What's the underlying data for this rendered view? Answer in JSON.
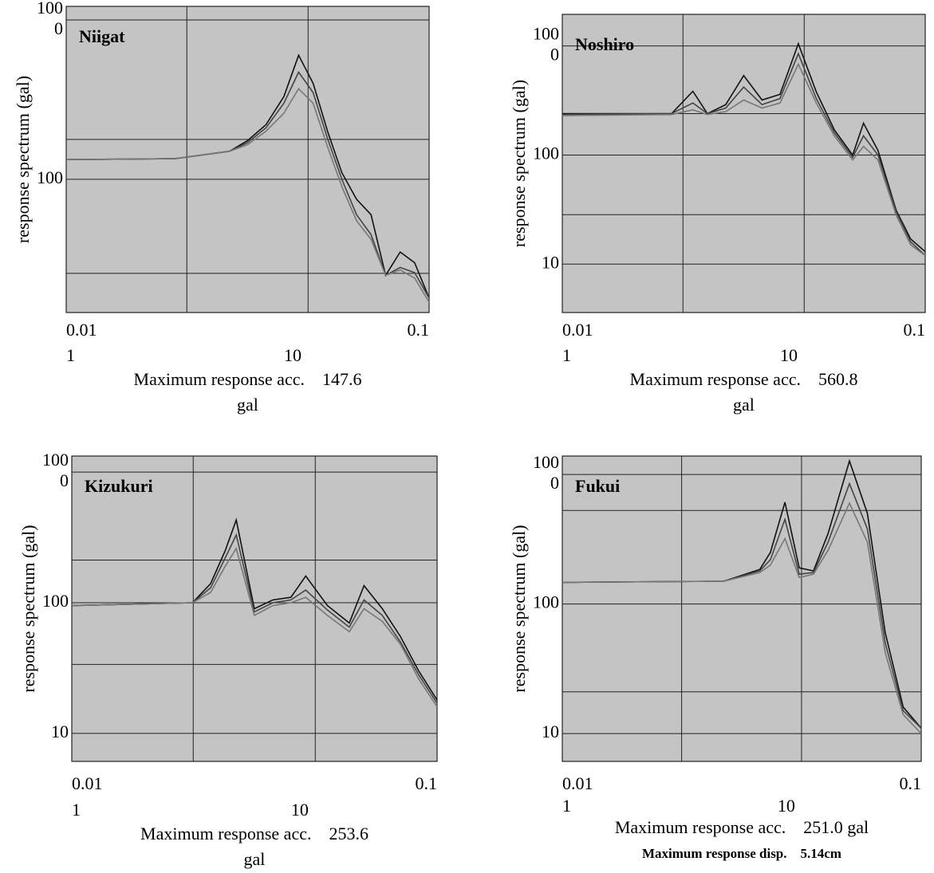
{
  "chart_data": [
    {
      "type": "line",
      "title": "Niigat",
      "ylabel": "response spectrum (gal)",
      "xlog": true,
      "ylog": true,
      "grid": true,
      "xlim": [
        0.01,
        0.1
      ],
      "xticks": [
        0.01,
        {
          "value": 0.0215,
          "label": null
        },
        {
          "value": 0.0464,
          "label": null
        },
        0.1
      ],
      "x2lim": [
        1,
        40
      ],
      "x2ticks": [
        1,
        10
      ],
      "ylim": [
        14.6,
        1216
      ],
      "yticks": [
        {
          "value": 1000,
          "label": [
            "100",
            "0"
          ]
        },
        {
          "value": 178,
          "label": null
        },
        100,
        {
          "value": 25.7,
          "label": null
        }
      ],
      "x": [
        0.01,
        0.0158,
        0.02,
        0.0282,
        0.0316,
        0.0355,
        0.0398,
        0.0437,
        0.0479,
        0.0525,
        0.0575,
        0.0631,
        0.0692,
        0.0759,
        0.0832,
        0.0912,
        0.1
      ],
      "series": [
        {
          "color": "#111111",
          "values": [
            133,
            134,
            135,
            150,
            175,
            220,
            330,
            600,
            400,
            200,
            110,
            75,
            60,
            25,
            35,
            30,
            18
          ]
        },
        {
          "color": "#444444",
          "values": [
            133,
            134,
            135,
            150,
            170,
            210,
            300,
            470,
            350,
            180,
            100,
            60,
            45,
            25,
            28,
            26,
            18
          ]
        },
        {
          "color": "#777777",
          "values": [
            133,
            134,
            135,
            150,
            165,
            200,
            260,
            370,
            300,
            160,
            90,
            55,
            42,
            25,
            27,
            24,
            17
          ]
        }
      ],
      "notes": [
        "Maximum response acc.    147.6",
        "gal"
      ]
    },
    {
      "type": "line",
      "title": "Noshiro",
      "ylabel": "response spectrum (gal)",
      "xlog": true,
      "ylog": true,
      "grid": true,
      "xlim": [
        0.01,
        0.1
      ],
      "xticks": [
        0.01,
        {
          "value": 0.0215,
          "label": null
        },
        {
          "value": 0.0464,
          "label": null
        },
        0.1
      ],
      "x2lim": [
        1,
        40
      ],
      "x2ticks": [
        1,
        10
      ],
      "ylim": [
        3.6,
        1950
      ],
      "yticks": [
        {
          "value": 1000,
          "label": [
            "100",
            "0"
          ]
        },
        {
          "value": 240,
          "label": null
        },
        100,
        {
          "value": 28.4,
          "label": null
        },
        10
      ],
      "x": [
        0.01,
        0.02,
        0.0229,
        0.0251,
        0.0282,
        0.0316,
        0.0355,
        0.0398,
        0.0447,
        0.0501,
        0.0562,
        0.0631,
        0.0676,
        0.0741,
        0.0832,
        0.0912,
        0.1
      ],
      "series": [
        {
          "color": "#111111",
          "values": [
            240,
            240,
            384,
            240,
            290,
            535,
            320,
            360,
            1050,
            380,
            170,
            100,
            196,
            110,
            31,
            17,
            13
          ]
        },
        {
          "color": "#444444",
          "values": [
            235,
            240,
            300,
            240,
            270,
            420,
            290,
            330,
            850,
            330,
            160,
            95,
            150,
            100,
            30,
            16,
            12
          ]
        },
        {
          "color": "#777777",
          "values": [
            230,
            235,
            260,
            235,
            250,
            320,
            270,
            300,
            680,
            300,
            150,
            90,
            120,
            90,
            28,
            15,
            12
          ]
        }
      ],
      "notes": [
        "Maximum response acc.    560.8",
        "gal"
      ]
    },
    {
      "type": "line",
      "title": "Kizukuri",
      "ylabel": "response spectrum (gal)",
      "xlog": true,
      "ylog": true,
      "grid": true,
      "xlim": [
        0.01,
        0.1
      ],
      "xticks": [
        0.01,
        {
          "value": 0.0215,
          "label": null
        },
        {
          "value": 0.0464,
          "label": null
        },
        0.1
      ],
      "x2lim": [
        1,
        40
      ],
      "x2ticks": [
        1,
        10
      ],
      "ylim": [
        6.1,
        1327
      ],
      "yticks": [
        {
          "value": 1000,
          "label": [
            "100",
            "0"
          ]
        },
        {
          "value": 212,
          "label": null
        },
        100,
        {
          "value": 33.7,
          "label": null
        },
        10
      ],
      "x": [
        0.01,
        0.0214,
        0.024,
        0.0263,
        0.0282,
        0.0316,
        0.0355,
        0.0398,
        0.0437,
        0.0501,
        0.0575,
        0.0631,
        0.0708,
        0.0794,
        0.0891,
        0.1
      ],
      "series": [
        {
          "color": "#111111",
          "values": [
            95,
            100,
            140,
            250,
            430,
            90,
            105,
            110,
            160,
            95,
            70,
            135,
            90,
            55,
            30,
            18
          ]
        },
        {
          "color": "#444444",
          "values": [
            95,
            100,
            130,
            220,
            330,
            85,
            100,
            105,
            125,
            88,
            65,
            105,
            80,
            50,
            28,
            17
          ]
        },
        {
          "color": "#777777",
          "values": [
            95,
            100,
            120,
            190,
            260,
            80,
            95,
            100,
            110,
            80,
            60,
            90,
            72,
            48,
            26,
            16
          ]
        }
      ],
      "notes": [
        "Maximum response acc.    253.6",
        "gal"
      ]
    },
    {
      "type": "line",
      "title": "Fukui",
      "ylabel": "response spectrum (gal)",
      "xlog": true,
      "ylog": true,
      "grid": true,
      "xlim": [
        0.01,
        0.1
      ],
      "xticks": [
        0.01,
        {
          "value": 0.0215,
          "label": null
        },
        {
          "value": 0.0464,
          "label": null
        },
        0.1
      ],
      "x2lim": [
        1,
        40
      ],
      "x2ticks": [
        1,
        10
      ],
      "ylim": [
        6.1,
        1387
      ],
      "yticks": [
        {
          "value": 1000,
          "label": [
            "100",
            "0"
          ]
        },
        {
          "value": 527,
          "label": null
        },
        100,
        {
          "value": 21,
          "label": null
        },
        10
      ],
      "x": [
        0.01,
        0.0282,
        0.0355,
        0.038,
        0.0417,
        0.0457,
        0.0501,
        0.055,
        0.0631,
        0.0708,
        0.0794,
        0.0891,
        0.1
      ],
      "series": [
        {
          "color": "#111111",
          "values": [
            147,
            150,
            185,
            250,
            610,
            190,
            180,
            350,
            1270,
            500,
            60,
            16,
            11
          ]
        },
        {
          "color": "#444444",
          "values": [
            147,
            150,
            180,
            220,
            450,
            170,
            175,
            300,
            850,
            380,
            50,
            15,
            11
          ]
        },
        {
          "color": "#777777",
          "values": [
            147,
            150,
            175,
            200,
            320,
            160,
            170,
            260,
            600,
            300,
            42,
            14,
            10
          ]
        }
      ],
      "notes": [
        "Maximum response acc.    251.0 gal",
        "Maximum response disp.    5.14cm"
      ]
    }
  ]
}
